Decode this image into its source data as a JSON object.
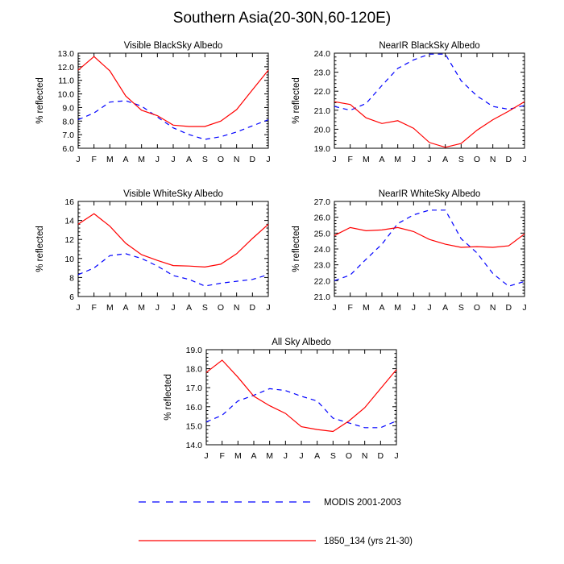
{
  "figure_title": "Southern Asia(20-30N,60-120E)",
  "legend": [
    {
      "label": "MODIS 2001-2003",
      "color": "#0000ff",
      "dash": "dashed"
    },
    {
      "label": "1850_134 (yrs 21-30)",
      "color": "#ff0000",
      "dash": "solid"
    }
  ],
  "chart_data": [
    {
      "type": "line",
      "title": "Visible BlackSky Albedo",
      "ylabel": "% reflected",
      "categories": [
        "J",
        "F",
        "M",
        "A",
        "M",
        "J",
        "J",
        "A",
        "S",
        "O",
        "N",
        "D",
        "J"
      ],
      "ylim": [
        6.0,
        13.0
      ],
      "yticks": [
        "6.0",
        "7.0",
        "8.0",
        "9.0",
        "10.0",
        "11.0",
        "12.0",
        "13.0"
      ],
      "series": [
        {
          "name": "MODIS 2001-2003",
          "values": [
            8.1,
            8.6,
            9.4,
            9.5,
            9.1,
            8.3,
            7.5,
            7.0,
            6.65,
            6.85,
            7.2,
            7.65,
            8.1
          ]
        },
        {
          "name": "1850_134 (yrs 21-30)",
          "values": [
            11.75,
            12.75,
            11.7,
            9.85,
            8.8,
            8.4,
            7.7,
            7.6,
            7.6,
            8.0,
            8.85,
            10.3,
            11.75
          ]
        }
      ]
    },
    {
      "type": "line",
      "title": "NearIR BlackSky Albedo",
      "ylabel": "% reflected",
      "categories": [
        "J",
        "F",
        "M",
        "A",
        "M",
        "J",
        "J",
        "A",
        "S",
        "O",
        "N",
        "D",
        "J"
      ],
      "ylim": [
        19.0,
        24.0
      ],
      "yticks": [
        "19.0",
        "20.0",
        "21.0",
        "22.0",
        "23.0",
        "24.0"
      ],
      "series": [
        {
          "name": "MODIS 2001-2003",
          "values": [
            21.2,
            21.0,
            21.35,
            22.3,
            23.2,
            23.65,
            23.95,
            23.95,
            22.55,
            21.75,
            21.2,
            21.05,
            21.25
          ]
        },
        {
          "name": "1850_134 (yrs 21-30)",
          "values": [
            21.45,
            21.3,
            20.6,
            20.3,
            20.45,
            20.05,
            19.3,
            19.05,
            19.25,
            19.95,
            20.5,
            20.95,
            21.45
          ]
        }
      ]
    },
    {
      "type": "line",
      "title": "Visible WhiteSky Albedo",
      "ylabel": "% reflected",
      "categories": [
        "J",
        "F",
        "M",
        "A",
        "M",
        "J",
        "J",
        "A",
        "S",
        "O",
        "N",
        "D",
        "J"
      ],
      "ylim": [
        6,
        16
      ],
      "yticks": [
        "6",
        "8",
        "10",
        "12",
        "14",
        "16"
      ],
      "series": [
        {
          "name": "MODIS 2001-2003",
          "values": [
            8.3,
            9.0,
            10.3,
            10.5,
            10.0,
            9.2,
            8.2,
            7.8,
            7.1,
            7.4,
            7.6,
            7.8,
            8.3
          ]
        },
        {
          "name": "1850_134 (yrs 21-30)",
          "values": [
            13.6,
            14.7,
            13.4,
            11.6,
            10.4,
            9.8,
            9.25,
            9.2,
            9.1,
            9.4,
            10.5,
            12.1,
            13.6
          ]
        }
      ]
    },
    {
      "type": "line",
      "title": "NearIR WhiteSky Albedo",
      "ylabel": "% reflected",
      "categories": [
        "J",
        "F",
        "M",
        "A",
        "M",
        "J",
        "J",
        "A",
        "S",
        "O",
        "N",
        "D",
        "J"
      ],
      "ylim": [
        21.0,
        27.0
      ],
      "yticks": [
        "21.0",
        "22.0",
        "23.0",
        "24.0",
        "25.0",
        "26.0",
        "27.0"
      ],
      "series": [
        {
          "name": "MODIS 2001-2003",
          "values": [
            22.0,
            22.35,
            23.35,
            24.3,
            25.6,
            26.15,
            26.45,
            26.45,
            24.65,
            23.75,
            22.45,
            21.65,
            21.95
          ]
        },
        {
          "name": "1850_134 (yrs 21-30)",
          "values": [
            24.85,
            25.35,
            25.15,
            25.2,
            25.35,
            25.1,
            24.6,
            24.3,
            24.1,
            24.15,
            24.1,
            24.2,
            24.95
          ]
        }
      ]
    },
    {
      "type": "line",
      "title": "All Sky Albedo",
      "ylabel": "% reflected",
      "categories": [
        "J",
        "F",
        "M",
        "A",
        "M",
        "J",
        "J",
        "A",
        "S",
        "O",
        "N",
        "D",
        "J"
      ],
      "ylim": [
        14.0,
        19.0
      ],
      "yticks": [
        "14.0",
        "15.0",
        "16.0",
        "17.0",
        "18.0",
        "19.0"
      ],
      "series": [
        {
          "name": "MODIS 2001-2003",
          "values": [
            15.2,
            15.55,
            16.3,
            16.6,
            16.95,
            16.85,
            16.55,
            16.3,
            15.4,
            15.15,
            14.9,
            14.9,
            15.25
          ]
        },
        {
          "name": "1850_134 (yrs 21-30)",
          "values": [
            17.8,
            18.45,
            17.55,
            16.55,
            16.05,
            15.65,
            14.95,
            14.8,
            14.7,
            15.25,
            15.95,
            16.95,
            17.95
          ]
        }
      ]
    }
  ]
}
